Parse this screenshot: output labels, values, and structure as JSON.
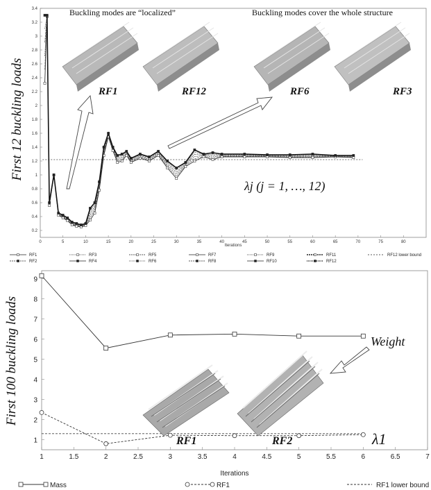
{
  "chart_data": [
    {
      "type": "line",
      "ylabel": "First 12 buckling loads",
      "xlabel": "Iterations",
      "xlim": [
        0,
        85
      ],
      "ylim": [
        0.1,
        3.4
      ],
      "xticks": [
        0,
        5,
        10,
        15,
        20,
        25,
        30,
        35,
        40,
        45,
        50,
        55,
        60,
        65,
        70,
        75,
        80
      ],
      "yticks": [
        0.2,
        0.4,
        0.6,
        0.8,
        1,
        1.2,
        1.4,
        1.6,
        1.8,
        2,
        2.2,
        2.4,
        2.6,
        2.8,
        3,
        3.2,
        3.4
      ],
      "lower_bound": 1.22,
      "annotations": {
        "left": "Buckling modes are “localized”",
        "right": "Buckling modes cover the whole structure",
        "formula": "λj (j = 1, …, 12)",
        "modes": [
          "RF1",
          "RF12",
          "RF6",
          "RF3"
        ]
      },
      "legend": [
        "RF1",
        "RF2",
        "RF3",
        "RF4",
        "RF5",
        "RF6",
        "RF7",
        "RF8",
        "RF9",
        "RF10",
        "RF11",
        "RF12",
        "RF12 lower bound"
      ],
      "series": [
        {
          "name": "RF1",
          "values": [
            [
              1,
              2.32
            ],
            [
              1.5,
              3.28
            ],
            [
              2,
              0.56
            ],
            [
              3,
              1.0
            ],
            [
              4,
              0.42
            ],
            [
              5,
              0.38
            ],
            [
              6,
              0.34
            ],
            [
              7,
              0.28
            ],
            [
              8,
              0.26
            ],
            [
              9,
              0.25
            ],
            [
              10,
              0.27
            ],
            [
              11,
              0.35
            ],
            [
              12,
              0.45
            ],
            [
              13,
              0.78
            ],
            [
              14,
              1.28
            ],
            [
              15,
              1.55
            ],
            [
              16,
              1.35
            ],
            [
              17,
              1.18
            ],
            [
              18,
              1.2
            ],
            [
              19,
              1.28
            ],
            [
              20,
              1.18
            ],
            [
              22,
              1.24
            ],
            [
              24,
              1.2
            ],
            [
              26,
              1.28
            ],
            [
              28,
              1.1
            ],
            [
              30,
              0.95
            ],
            [
              32,
              1.12
            ],
            [
              34,
              1.2
            ],
            [
              36,
              1.26
            ],
            [
              38,
              1.22
            ],
            [
              40,
              1.26
            ],
            [
              45,
              1.26
            ],
            [
              50,
              1.26
            ],
            [
              55,
              1.25
            ],
            [
              60,
              1.25
            ],
            [
              65,
              1.26
            ],
            [
              69,
              1.25
            ]
          ]
        },
        {
          "name": "RF12",
          "values": [
            [
              1,
              3.3
            ],
            [
              1.5,
              3.3
            ],
            [
              2,
              0.6
            ],
            [
              3,
              1.0
            ],
            [
              4,
              0.45
            ],
            [
              5,
              0.42
            ],
            [
              6,
              0.38
            ],
            [
              7,
              0.32
            ],
            [
              8,
              0.3
            ],
            [
              9,
              0.28
            ],
            [
              10,
              0.3
            ],
            [
              11,
              0.52
            ],
            [
              12,
              0.6
            ],
            [
              13,
              0.9
            ],
            [
              14,
              1.4
            ],
            [
              15,
              1.6
            ],
            [
              16,
              1.4
            ],
            [
              17,
              1.28
            ],
            [
              18,
              1.3
            ],
            [
              19,
              1.34
            ],
            [
              20,
              1.24
            ],
            [
              22,
              1.3
            ],
            [
              24,
              1.26
            ],
            [
              26,
              1.34
            ],
            [
              28,
              1.2
            ],
            [
              30,
              1.1
            ],
            [
              32,
              1.18
            ],
            [
              34,
              1.36
            ],
            [
              36,
              1.3
            ],
            [
              38,
              1.32
            ],
            [
              40,
              1.3
            ],
            [
              45,
              1.3
            ],
            [
              50,
              1.29
            ],
            [
              55,
              1.29
            ],
            [
              60,
              1.3
            ],
            [
              65,
              1.28
            ],
            [
              69,
              1.28
            ]
          ]
        }
      ]
    },
    {
      "type": "line",
      "ylabel": "First 100 buckling loads",
      "xlabel": "Iterations",
      "xlim": [
        1,
        7
      ],
      "ylim": [
        0.5,
        9.4
      ],
      "xticks": [
        1,
        1.5,
        2,
        2.5,
        3,
        3.5,
        4,
        4.5,
        5,
        5.5,
        6,
        6.5,
        7
      ],
      "yticks": [
        1,
        2,
        3,
        4,
        5,
        6,
        7,
        8,
        9
      ],
      "lower_bound": 1.3,
      "annotations": {
        "weight": "Weight",
        "lambda": "λ1",
        "modes": [
          "RF1",
          "RF2"
        ]
      },
      "legend": [
        "Mass",
        "RF1",
        "RF1 lower bound"
      ],
      "series": [
        {
          "name": "Mass",
          "x": [
            1,
            2,
            3,
            4,
            5,
            6
          ],
          "values": [
            9.15,
            5.55,
            6.2,
            6.25,
            6.15,
            6.15
          ]
        },
        {
          "name": "RF1",
          "x": [
            1,
            2,
            3,
            4,
            5,
            6
          ],
          "values": [
            2.35,
            0.8,
            1.22,
            1.2,
            1.2,
            1.25
          ]
        }
      ]
    }
  ]
}
